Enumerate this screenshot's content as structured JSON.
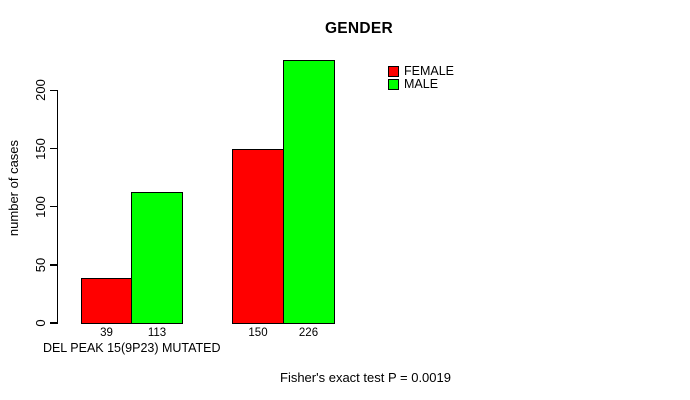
{
  "window": {
    "background": "#ffffff",
    "text_color": "#000000"
  },
  "chart_data": {
    "type": "bar",
    "title": "GENDER",
    "ylabel": "number of cases",
    "xlabel": "",
    "categories": [
      "DEL PEAK 15(9P23) MUTATED",
      ""
    ],
    "series": [
      {
        "name": "FEMALE",
        "color": "#ff0000",
        "values": [
          39,
          150
        ]
      },
      {
        "name": "MALE",
        "color": "#00ff00",
        "values": [
          113,
          226
        ]
      }
    ],
    "bar_value_labels": [
      [
        "39",
        "113"
      ],
      [
        "150",
        "226"
      ]
    ],
    "yticks": [
      "0",
      "50",
      "100",
      "150",
      "200"
    ],
    "ylim": [
      0,
      235
    ],
    "grid": false,
    "legend": {
      "position": "top-right",
      "entries": [
        "FEMALE",
        "MALE"
      ]
    },
    "annotation": "Fisher's exact test P = 0.0019",
    "axis_color": "#000000"
  }
}
